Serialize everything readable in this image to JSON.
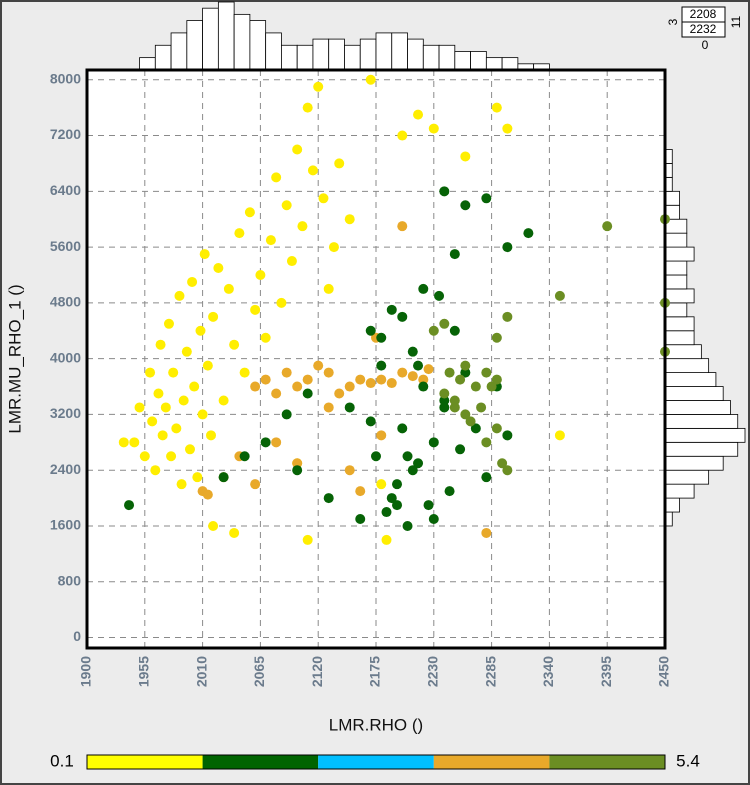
{
  "chart_data": {
    "type": "scatter",
    "x_label": "LMR.RHO ()",
    "y_label": "LMR.MU_RHO_1 ()",
    "xlim": [
      1900,
      2450
    ],
    "ylim": [
      -150,
      8140
    ],
    "xticks": [
      1900,
      1955,
      2010,
      2065,
      2120,
      2175,
      2230,
      2285,
      2340,
      2395,
      2450
    ],
    "yticks": [
      0,
      800,
      1600,
      2400,
      3200,
      4000,
      4800,
      5600,
      6400,
      7200,
      8000
    ],
    "grid": true,
    "series": [
      {
        "color": "#ffee00",
        "x": [
          1935,
          1945,
          1950,
          1955,
          1960,
          1962,
          1965,
          1968,
          1970,
          1972,
          1975,
          1978,
          1980,
          1982,
          1985,
          1988,
          1990,
          1992,
          1995,
          1998,
          2000,
          2002,
          2005,
          2008,
          2010,
          2012,
          2015,
          2018,
          2020,
          2025,
          2030,
          2035,
          2040,
          2045,
          2050,
          2055,
          2060,
          2065,
          2070,
          2075,
          2080,
          2085,
          2090,
          2095,
          2100,
          2105,
          2110,
          2115,
          2120,
          2125,
          2130,
          2135,
          2140,
          2150,
          2020,
          2040,
          2110,
          2170,
          2200,
          2215,
          2230,
          2260,
          2290,
          2300,
          2350,
          2185,
          2100,
          2180
        ],
        "y": [
          2800,
          2800,
          3300,
          2600,
          3800,
          3100,
          2400,
          3500,
          4200,
          2900,
          3300,
          4500,
          2600,
          3800,
          3000,
          4900,
          2200,
          3400,
          4100,
          2700,
          5100,
          3600,
          2300,
          4400,
          3200,
          5500,
          3900,
          2900,
          4600,
          5300,
          3400,
          5000,
          4200,
          5800,
          3800,
          6100,
          4700,
          5200,
          4300,
          5700,
          6600,
          4800,
          6200,
          5400,
          7000,
          5900,
          7600,
          6700,
          7900,
          6300,
          5000,
          5600,
          6800,
          6000,
          1600,
          1500,
          1400,
          8000,
          7200,
          7500,
          7300,
          6900,
          7600,
          7300,
          2900,
          1400,
          2500,
          2200
        ]
      },
      {
        "color": "#e8a92a",
        "x": [
          2060,
          2070,
          2080,
          2090,
          2100,
          2110,
          2120,
          2130,
          2140,
          2150,
          2160,
          2170,
          2180,
          2190,
          2200,
          2210,
          2220,
          2225,
          2010,
          2015,
          2030,
          2045,
          2060,
          2080,
          2100,
          2130,
          2150,
          2160,
          2180,
          2200,
          2280,
          2175
        ],
        "y": [
          3600,
          3700,
          3500,
          3800,
          3600,
          3700,
          3900,
          3800,
          3500,
          3600,
          3700,
          3650,
          3700,
          3650,
          3800,
          3750,
          3700,
          3850,
          2100,
          2050,
          2300,
          2600,
          2200,
          2800,
          2500,
          3300,
          2400,
          2100,
          2900,
          5900,
          1500,
          4300
        ]
      },
      {
        "color": "#066306",
        "x": [
          1940,
          2030,
          2050,
          2070,
          2090,
          2100,
          2110,
          2130,
          2150,
          2160,
          2170,
          2175,
          2180,
          2185,
          2190,
          2195,
          2200,
          2205,
          2210,
          2215,
          2220,
          2225,
          2230,
          2235,
          2240,
          2245,
          2250,
          2255,
          2260,
          2270,
          2280,
          2290,
          2300,
          2180,
          2200,
          2220,
          2240,
          2260,
          2280,
          2300,
          2320,
          2240,
          2250,
          2210,
          2190,
          2170,
          2230,
          2215,
          2205,
          2195
        ],
        "y": [
          1900,
          2300,
          2600,
          2800,
          3200,
          2400,
          3500,
          2000,
          3300,
          1700,
          4400,
          2600,
          3900,
          1800,
          4700,
          2200,
          3000,
          1600,
          4100,
          2500,
          3600,
          1900,
          2800,
          4900,
          3300,
          2100,
          4400,
          2700,
          3800,
          3000,
          2300,
          3600,
          2900,
          4300,
          4600,
          5000,
          3400,
          6200,
          6300,
          5600,
          5800,
          6400,
          5500,
          2400,
          2000,
          3100,
          1700,
          3900,
          2600,
          1900
        ]
      },
      {
        "color": "#6b8e23",
        "x": [
          2240,
          2245,
          2250,
          2255,
          2260,
          2265,
          2270,
          2275,
          2280,
          2285,
          2290,
          2295,
          2300,
          2280,
          2260,
          2250,
          2290,
          2300,
          2395,
          2450,
          2450,
          2450,
          2350,
          2290,
          2230,
          2240
        ],
        "y": [
          3500,
          3800,
          3300,
          3700,
          3900,
          3100,
          3600,
          3300,
          3800,
          3600,
          3700,
          2500,
          2400,
          2800,
          3200,
          3400,
          4300,
          4600,
          5900,
          6000,
          4800,
          4100,
          4900,
          3000,
          4400,
          4500
        ]
      }
    ],
    "top_histogram": {
      "bins": [
        1950,
        1965,
        1980,
        1995,
        2010,
        2025,
        2040,
        2055,
        2070,
        2085,
        2100,
        2115,
        2130,
        2145,
        2160,
        2175,
        2190,
        2205,
        2220,
        2235,
        2250,
        2265,
        2280,
        2295,
        2310,
        2325,
        2340
      ],
      "counts": [
        2,
        4,
        6,
        8,
        10,
        11,
        9,
        8,
        6,
        4,
        4,
        5,
        5,
        4,
        5,
        6,
        6,
        5,
        4,
        4,
        3,
        3,
        2,
        2,
        1,
        1
      ]
    },
    "right_histogram": {
      "bins": [
        1600,
        1800,
        2000,
        2200,
        2400,
        2600,
        2800,
        3000,
        3200,
        3400,
        3600,
        3800,
        4000,
        4200,
        4400,
        4600,
        4800,
        5000,
        5200,
        5400,
        5600,
        5800,
        6000,
        6200,
        6400,
        6600,
        6800,
        7000
      ],
      "counts": [
        1,
        2,
        4,
        6,
        8,
        10,
        11,
        10,
        9,
        8,
        7,
        6,
        5,
        4,
        4,
        3,
        4,
        3,
        3,
        4,
        3,
        3,
        2,
        2,
        1,
        1,
        1
      ]
    },
    "histogram_count_lim": [
      0,
      11
    ],
    "corner_box": {
      "values": [
        "2208",
        "2232"
      ],
      "left": "3",
      "right": "11",
      "bottom": "0"
    },
    "colorbar": {
      "min": 0.1,
      "max": 5.4,
      "colors": [
        "#ffff00",
        "#006400",
        "#00bfff",
        "#e8a92a",
        "#6b8e23"
      ]
    }
  }
}
